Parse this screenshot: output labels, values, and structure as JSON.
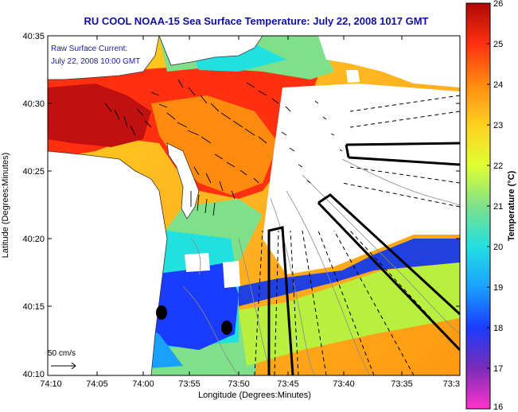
{
  "title": "RU COOL  NOAA-15  Sea Surface Temperature:  July 22, 2008 1017 GMT",
  "annotation": {
    "line1": "Raw Surface Current:",
    "line2": "July 22, 2008 10:00 GMT"
  },
  "scale_label": "50 cm/s",
  "x_axis": {
    "label": "Longitude (Degrees:Minutes)",
    "ticks": [
      "74:10",
      "74:05",
      "74:00",
      "73:55",
      "73:50",
      "73:45",
      "73:40",
      "73:35",
      "73:3"
    ]
  },
  "y_axis": {
    "label": "Latitude (Degrees:Minutes)",
    "ticks": [
      "40:35",
      "40:30",
      "40:25",
      "40:20",
      "40:15",
      "40:10"
    ]
  },
  "colorbar": {
    "label": "Temperature (°C)",
    "ticks": [
      "26",
      "25",
      "24",
      "23",
      "22",
      "21",
      "20",
      "19",
      "18",
      "17",
      "16"
    ],
    "range": [
      16,
      26
    ],
    "colors": [
      "#ff33cc",
      "#7a2cb8",
      "#1a3cff",
      "#1aa0ff",
      "#22e0e0",
      "#7fe08a",
      "#e0ff30",
      "#ffd020",
      "#ff8a10",
      "#ff3010",
      "#b00808"
    ]
  },
  "colors": {
    "title": "#1010a0",
    "land": "#ffffff",
    "no_data": "#ffffff",
    "station_marker": "#000000"
  },
  "icons": [
    "scale-arrow-icon",
    "station-marker-icon"
  ]
}
